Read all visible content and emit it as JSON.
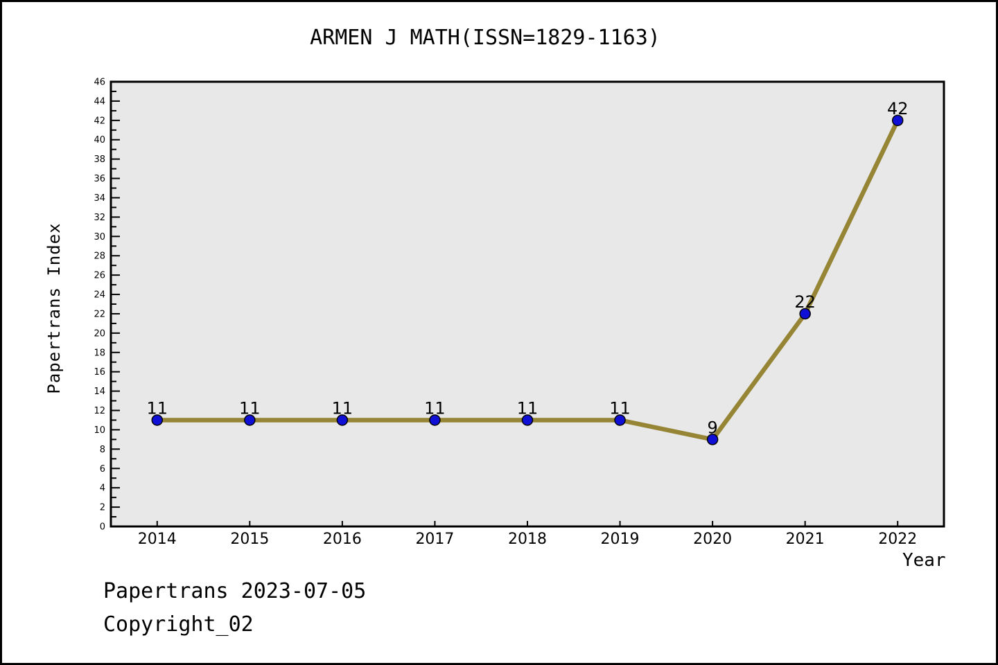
{
  "page": {
    "title": "ARMEN J MATH(ISSN=1829-1163)",
    "footer_line1": "Papertrans 2023-07-05",
    "footer_line2": "Copyright_02"
  },
  "chart_data": {
    "type": "line",
    "title": "ARMEN J MATH(ISSN=1829-1163)",
    "xlabel": "Year",
    "ylabel": "Papertrans Index",
    "x": [
      2014,
      2015,
      2016,
      2017,
      2018,
      2019,
      2020,
      2021,
      2022
    ],
    "values": [
      11,
      11,
      11,
      11,
      11,
      11,
      9,
      22,
      42
    ],
    "point_labels": [
      "11",
      "11",
      "11",
      "11",
      "11",
      "11",
      "9",
      "22",
      "42"
    ],
    "xlim": [
      2013.5,
      2022.5
    ],
    "ylim": [
      0,
      46
    ],
    "y_major_ticks": [
      0,
      2,
      4,
      6,
      8,
      10,
      12,
      14,
      16,
      18,
      20,
      22,
      24,
      26,
      28,
      30,
      32,
      34,
      36,
      38,
      40,
      42,
      44,
      46
    ],
    "y_minor_step": 1,
    "grid": false,
    "legend": false,
    "style": {
      "line_color": "#958534",
      "line_width": 6.5,
      "marker_color": "#0f0fd6",
      "marker_edge_color": "#000000",
      "marker_radius": 7.5,
      "plot_bg": "#e8e8e8",
      "page_bg": "#ffffff",
      "frame_color": "#000000",
      "text_color": "#000000"
    }
  }
}
